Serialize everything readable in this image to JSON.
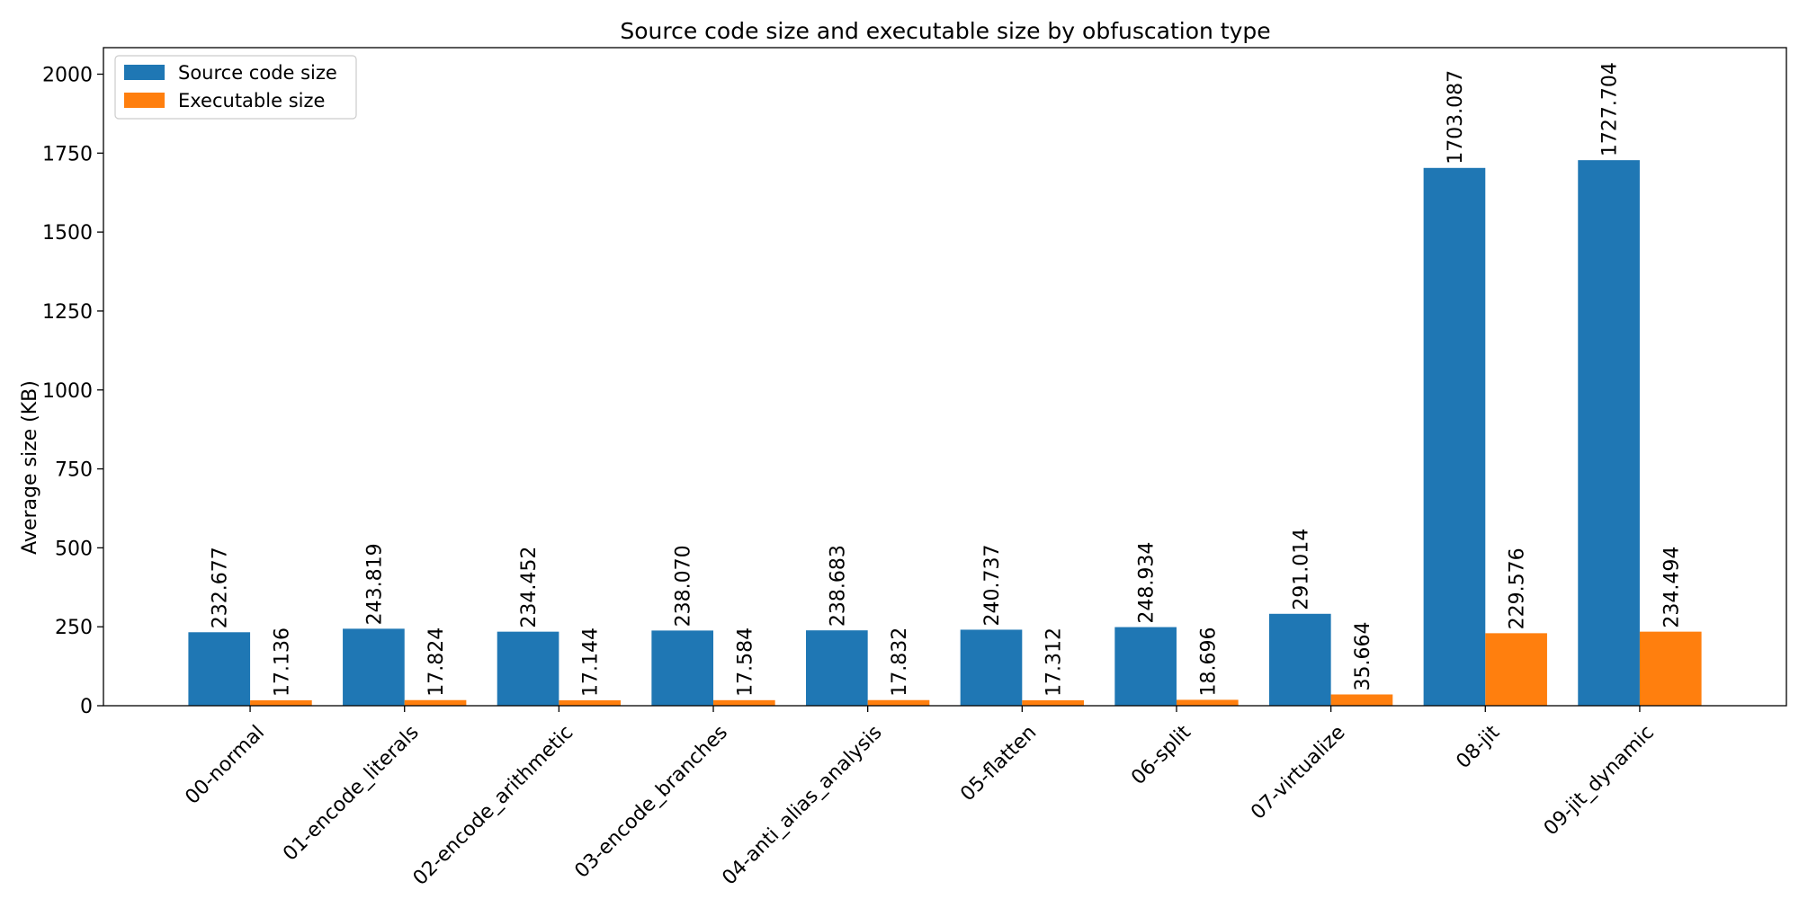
{
  "chart_data": {
    "type": "bar",
    "title": "Source code size and executable size by obfuscation type",
    "xlabel": "",
    "ylabel": "Average size (KB)",
    "ylim": [
      0,
      2084
    ],
    "yticks": [
      0,
      250,
      500,
      750,
      1000,
      1250,
      1500,
      1750,
      2000
    ],
    "grid": false,
    "legend_position": "top-left",
    "categories": [
      "00-normal",
      "01-encode_literals",
      "02-encode_arithmetic",
      "03-encode_branches",
      "04-anti_alias_analysis",
      "05-flatten",
      "06-split",
      "07-virtualize",
      "08-jit",
      "09-jit_dynamic"
    ],
    "series": [
      {
        "name": "Source code size",
        "color": "#1f77b4",
        "values": [
          232.677,
          243.819,
          234.452,
          238.07,
          238.683,
          240.737,
          248.934,
          291.014,
          1703.087,
          1727.704
        ],
        "labels": [
          "232.677",
          "243.819",
          "234.452",
          "238.070",
          "238.683",
          "240.737",
          "248.934",
          "291.014",
          "1703.087",
          "1727.704"
        ]
      },
      {
        "name": "Executable size",
        "color": "#ff7f0e",
        "values": [
          17.136,
          17.824,
          17.144,
          17.584,
          17.832,
          17.312,
          18.696,
          35.664,
          229.576,
          234.494
        ],
        "labels": [
          "17.136",
          "17.824",
          "17.144",
          "17.584",
          "17.832",
          "17.312",
          "18.696",
          "35.664",
          "229.576",
          "234.494"
        ]
      }
    ]
  }
}
